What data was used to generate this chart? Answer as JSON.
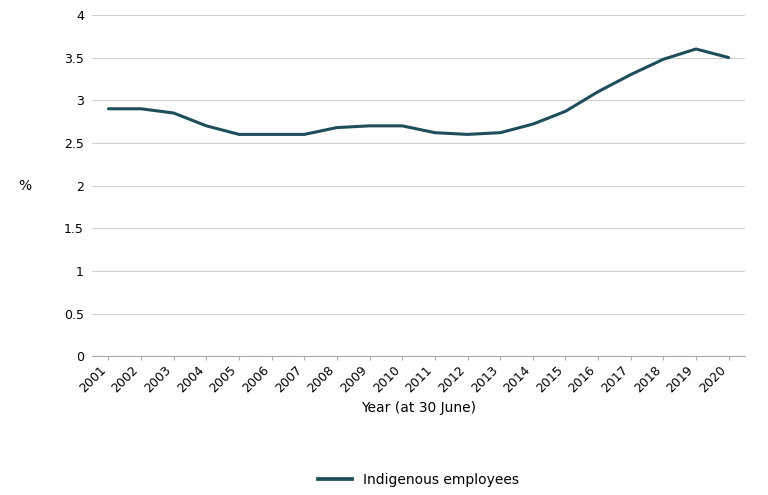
{
  "years": [
    2001,
    2002,
    2003,
    2004,
    2005,
    2006,
    2007,
    2008,
    2009,
    2010,
    2011,
    2012,
    2013,
    2014,
    2015,
    2016,
    2017,
    2018,
    2019,
    2020
  ],
  "values": [
    2.9,
    2.9,
    2.85,
    2.7,
    2.6,
    2.6,
    2.6,
    2.68,
    2.7,
    2.7,
    2.62,
    2.6,
    2.62,
    2.72,
    2.87,
    3.1,
    3.3,
    3.48,
    3.6,
    3.5
  ],
  "line_color": "#1e4d5c",
  "line_width": 2.2,
  "xlabel": "Year (at 30 June)",
  "ylabel": "%",
  "ylim": [
    0,
    4
  ],
  "yticks": [
    0,
    0.5,
    1,
    1.5,
    2,
    2.5,
    3,
    3.5,
    4
  ],
  "ytick_labels": [
    "0",
    "0.5",
    "1",
    "1.5",
    "2",
    "2.5",
    "3",
    "3.5",
    "4"
  ],
  "legend_label": "Indigenous employees",
  "background_color": "#ffffff",
  "grid_color": "#d0d0d0",
  "axis_fontsize": 10,
  "tick_fontsize": 9
}
